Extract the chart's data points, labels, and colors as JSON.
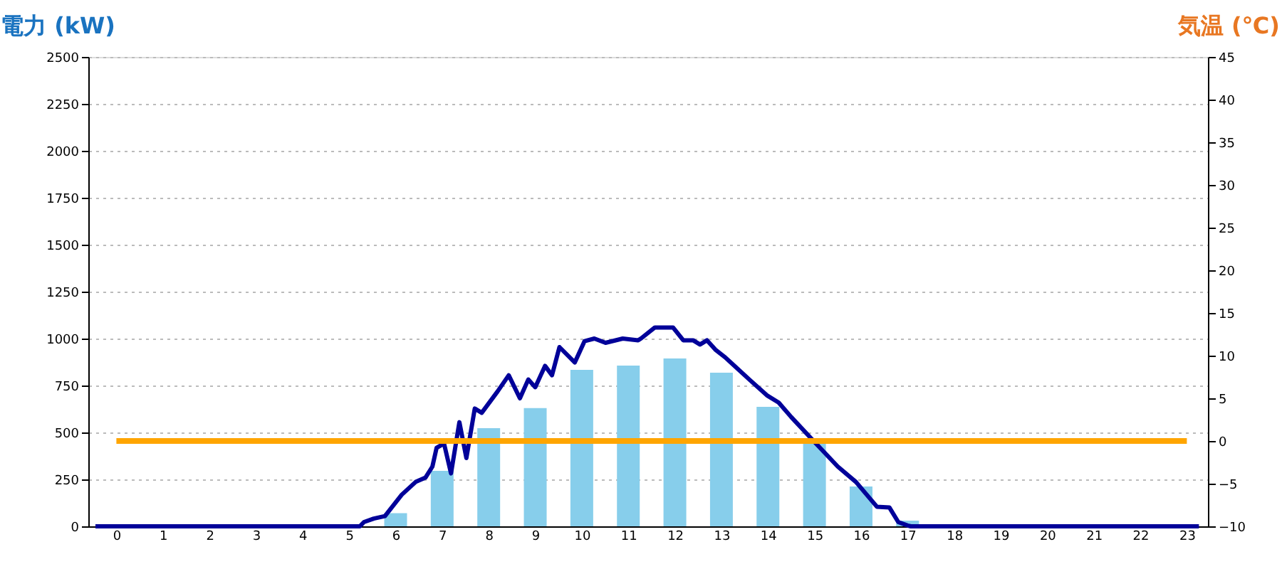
{
  "chart_data": {
    "type": "bar",
    "ylabel": "電力 (kW)",
    "y2label": "気温 (℃)",
    "x": [
      0,
      1,
      2,
      3,
      4,
      5,
      6,
      7,
      8,
      9,
      10,
      11,
      12,
      13,
      14,
      15,
      16,
      17,
      18,
      19,
      20,
      21,
      22,
      23
    ],
    "xlim": [
      -0.45,
      23.3
    ],
    "xticks": [
      0,
      1,
      2,
      3,
      4,
      5,
      6,
      7,
      8,
      9,
      10,
      11,
      12,
      13,
      14,
      15,
      16,
      17,
      18,
      19,
      20,
      21,
      22,
      23
    ],
    "ylim": [
      0,
      2500
    ],
    "yticks": [
      0,
      250,
      500,
      750,
      1000,
      1250,
      1500,
      1750,
      2000,
      2250,
      2500
    ],
    "y2lim": [
      -10,
      45
    ],
    "y2ticks": [
      -10,
      -5,
      0,
      5,
      10,
      15,
      20,
      25,
      30,
      35,
      40,
      45
    ],
    "grid": "y",
    "marker": "none",
    "line_style": "solid",
    "series": [
      {
        "color": "#87ceeb",
        "values": [
          0,
          0,
          0,
          0,
          0,
          0,
          70,
          295,
          523,
          630,
          833,
          856,
          894,
          818,
          636,
          440,
          212,
          30,
          0,
          0,
          0,
          0,
          0,
          0
        ]
      },
      {
        "type": "line",
        "axis": "y2",
        "color": "#000099",
        "x": [
          -0.45,
          5.23,
          5.32,
          5.53,
          5.77,
          6.13,
          6.43,
          6.64,
          6.79,
          6.88,
          7.04,
          7.19,
          7.37,
          7.52,
          7.7,
          7.85,
          8.19,
          8.43,
          8.67,
          8.85,
          9.0,
          9.21,
          9.36,
          9.52,
          9.85,
          10.06,
          10.27,
          10.51,
          10.88,
          11.21,
          11.27,
          11.57,
          11.96,
          12.18,
          12.39,
          12.54,
          12.69,
          12.87,
          13.08,
          13.6,
          13.99,
          14.23,
          14.5,
          14.98,
          15.5,
          15.89,
          16.34,
          16.61,
          16.8,
          17.0,
          17.07,
          23.26
        ],
        "values": [
          -10,
          -10,
          -9.5,
          -9.1,
          -8.8,
          -6.3,
          -4.8,
          -4.3,
          -3,
          -0.8,
          -0.3,
          -3.8,
          2.2,
          -2,
          3.8,
          3.3,
          5.8,
          7.7,
          5,
          7.2,
          6.3,
          8.8,
          7.7,
          11,
          9.2,
          11.7,
          12,
          11.5,
          12,
          11.8,
          12,
          13.3,
          13.3,
          11.8,
          11.8,
          11.3,
          11.8,
          10.7,
          9.8,
          7.2,
          5.3,
          4.5,
          2.8,
          0,
          -3,
          -4.8,
          -7.7,
          -7.8,
          -9.5,
          -9.9,
          -10,
          -10
        ]
      }
    ],
    "ref_lines": [
      {
        "axis": "y2",
        "value": 0,
        "color": "#ffa500",
        "line_style": "solid"
      }
    ]
  }
}
